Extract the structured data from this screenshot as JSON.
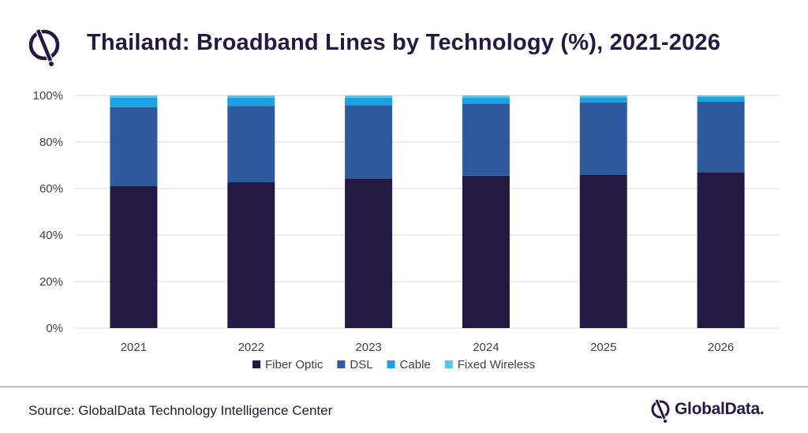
{
  "header": {
    "title": "Thailand: Broadband Lines by Technology (%), 2021-2026",
    "logo_icon": "globaldata-mark-icon"
  },
  "footer": {
    "source": "Source: GlobalData Technology Intelligence Center",
    "brand": "GlobalData."
  },
  "colors": {
    "Fiber Optic": "#231942",
    "DSL": "#2f5a9e",
    "Cable": "#1aa3e0",
    "Fixed Wireless": "#56c6ee",
    "grid": "#d9d9d9",
    "title": "#231942"
  },
  "chart_data": {
    "type": "bar",
    "stacked": true,
    "title": "Thailand: Broadband Lines by Technology (%), 2021-2026",
    "xlabel": "",
    "ylabel": "",
    "ylim": [
      0,
      100
    ],
    "yticks": [
      "0%",
      "20%",
      "40%",
      "60%",
      "80%",
      "100%"
    ],
    "categories": [
      "2021",
      "2022",
      "2023",
      "2024",
      "2025",
      "2026"
    ],
    "series": [
      {
        "name": "Fiber Optic",
        "values": [
          61,
          62.7,
          64.3,
          65.5,
          66,
          67
        ]
      },
      {
        "name": "DSL",
        "values": [
          34,
          32.8,
          31.5,
          31,
          31,
          30.3
        ]
      },
      {
        "name": "Cable",
        "values": [
          4,
          3.5,
          3.2,
          2.6,
          2.2,
          2
        ]
      },
      {
        "name": "Fixed Wireless",
        "values": [
          1,
          1,
          1,
          0.9,
          0.8,
          0.7
        ]
      }
    ],
    "grid": true,
    "legend_position": "bottom"
  }
}
